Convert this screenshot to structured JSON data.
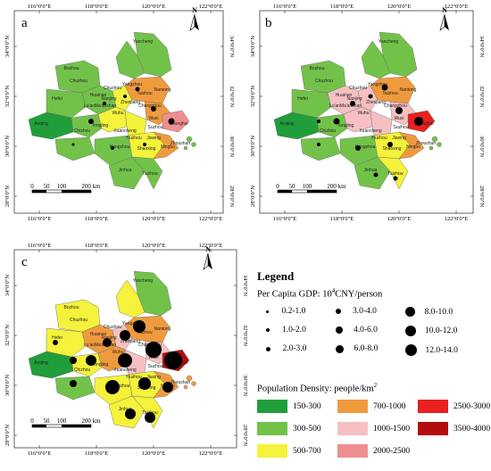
{
  "panels": [
    {
      "label": "a"
    },
    {
      "label": "b"
    },
    {
      "label": "c"
    }
  ],
  "axes": {
    "lon": [
      "116°0'0\"E",
      "118°0'0\"E",
      "120°0'0\"E",
      "122°0'0\"E"
    ],
    "lat": [
      "34°0'0\"N",
      "32°0'0\"N",
      "30°0'0\"N",
      "28°0'0\"N"
    ]
  },
  "north_label": "N",
  "scale": {
    "ticks": [
      "0",
      "50",
      "100",
      "200 km"
    ]
  },
  "cities": [
    "Yancheng",
    "Bozhou",
    "Chuzhou",
    "Hefei",
    "Huainan",
    "Lu'an",
    "Anqing",
    "Wuhu",
    "Ma'anshan",
    "Tongling",
    "Chizhou",
    "Xuancheng",
    "Chuzhou",
    "Yangzhou",
    "Taizhou",
    "Nantong",
    "Nanjing",
    "Zhenjiang",
    "Changzhou",
    "Wuxi",
    "Suzhou",
    "Shanghai",
    "Huzhou",
    "Jiaxing",
    "Hangzhou",
    "Shaoxing",
    "Ningbo",
    "Zhoushan",
    "Jinhua",
    "Taizhou"
  ],
  "legend": {
    "title": "Legend",
    "gdp_title": "Per Capita GDP: 10",
    "gdp_sup": "4",
    "gdp_unit": "CNY/person",
    "gdp_classes": [
      "0.2-1.0",
      "1.0-2.0",
      "2.0-3.0",
      "3.0-4.0",
      "4.0-6.0",
      "6.0-8.0",
      "8.0-10.0",
      "10.0-12.0",
      "12.0-14.0"
    ],
    "pd_title": "Population Density: people/km",
    "pd_sup": "2",
    "pd_classes": [
      {
        "label": "150-300",
        "color": "#1f9e3a"
      },
      {
        "label": "300-500",
        "color": "#72c24a"
      },
      {
        "label": "500-700",
        "color": "#f4f23a"
      },
      {
        "label": "700-1000",
        "color": "#f09a3e"
      },
      {
        "label": "1000-1500",
        "color": "#f6c0c3"
      },
      {
        "label": "2000-2500",
        "color": "#ef8e90"
      },
      {
        "label": "2500-3000",
        "color": "#e8201e"
      },
      {
        "label": "3500-4000",
        "color": "#b30d0d"
      }
    ]
  }
}
